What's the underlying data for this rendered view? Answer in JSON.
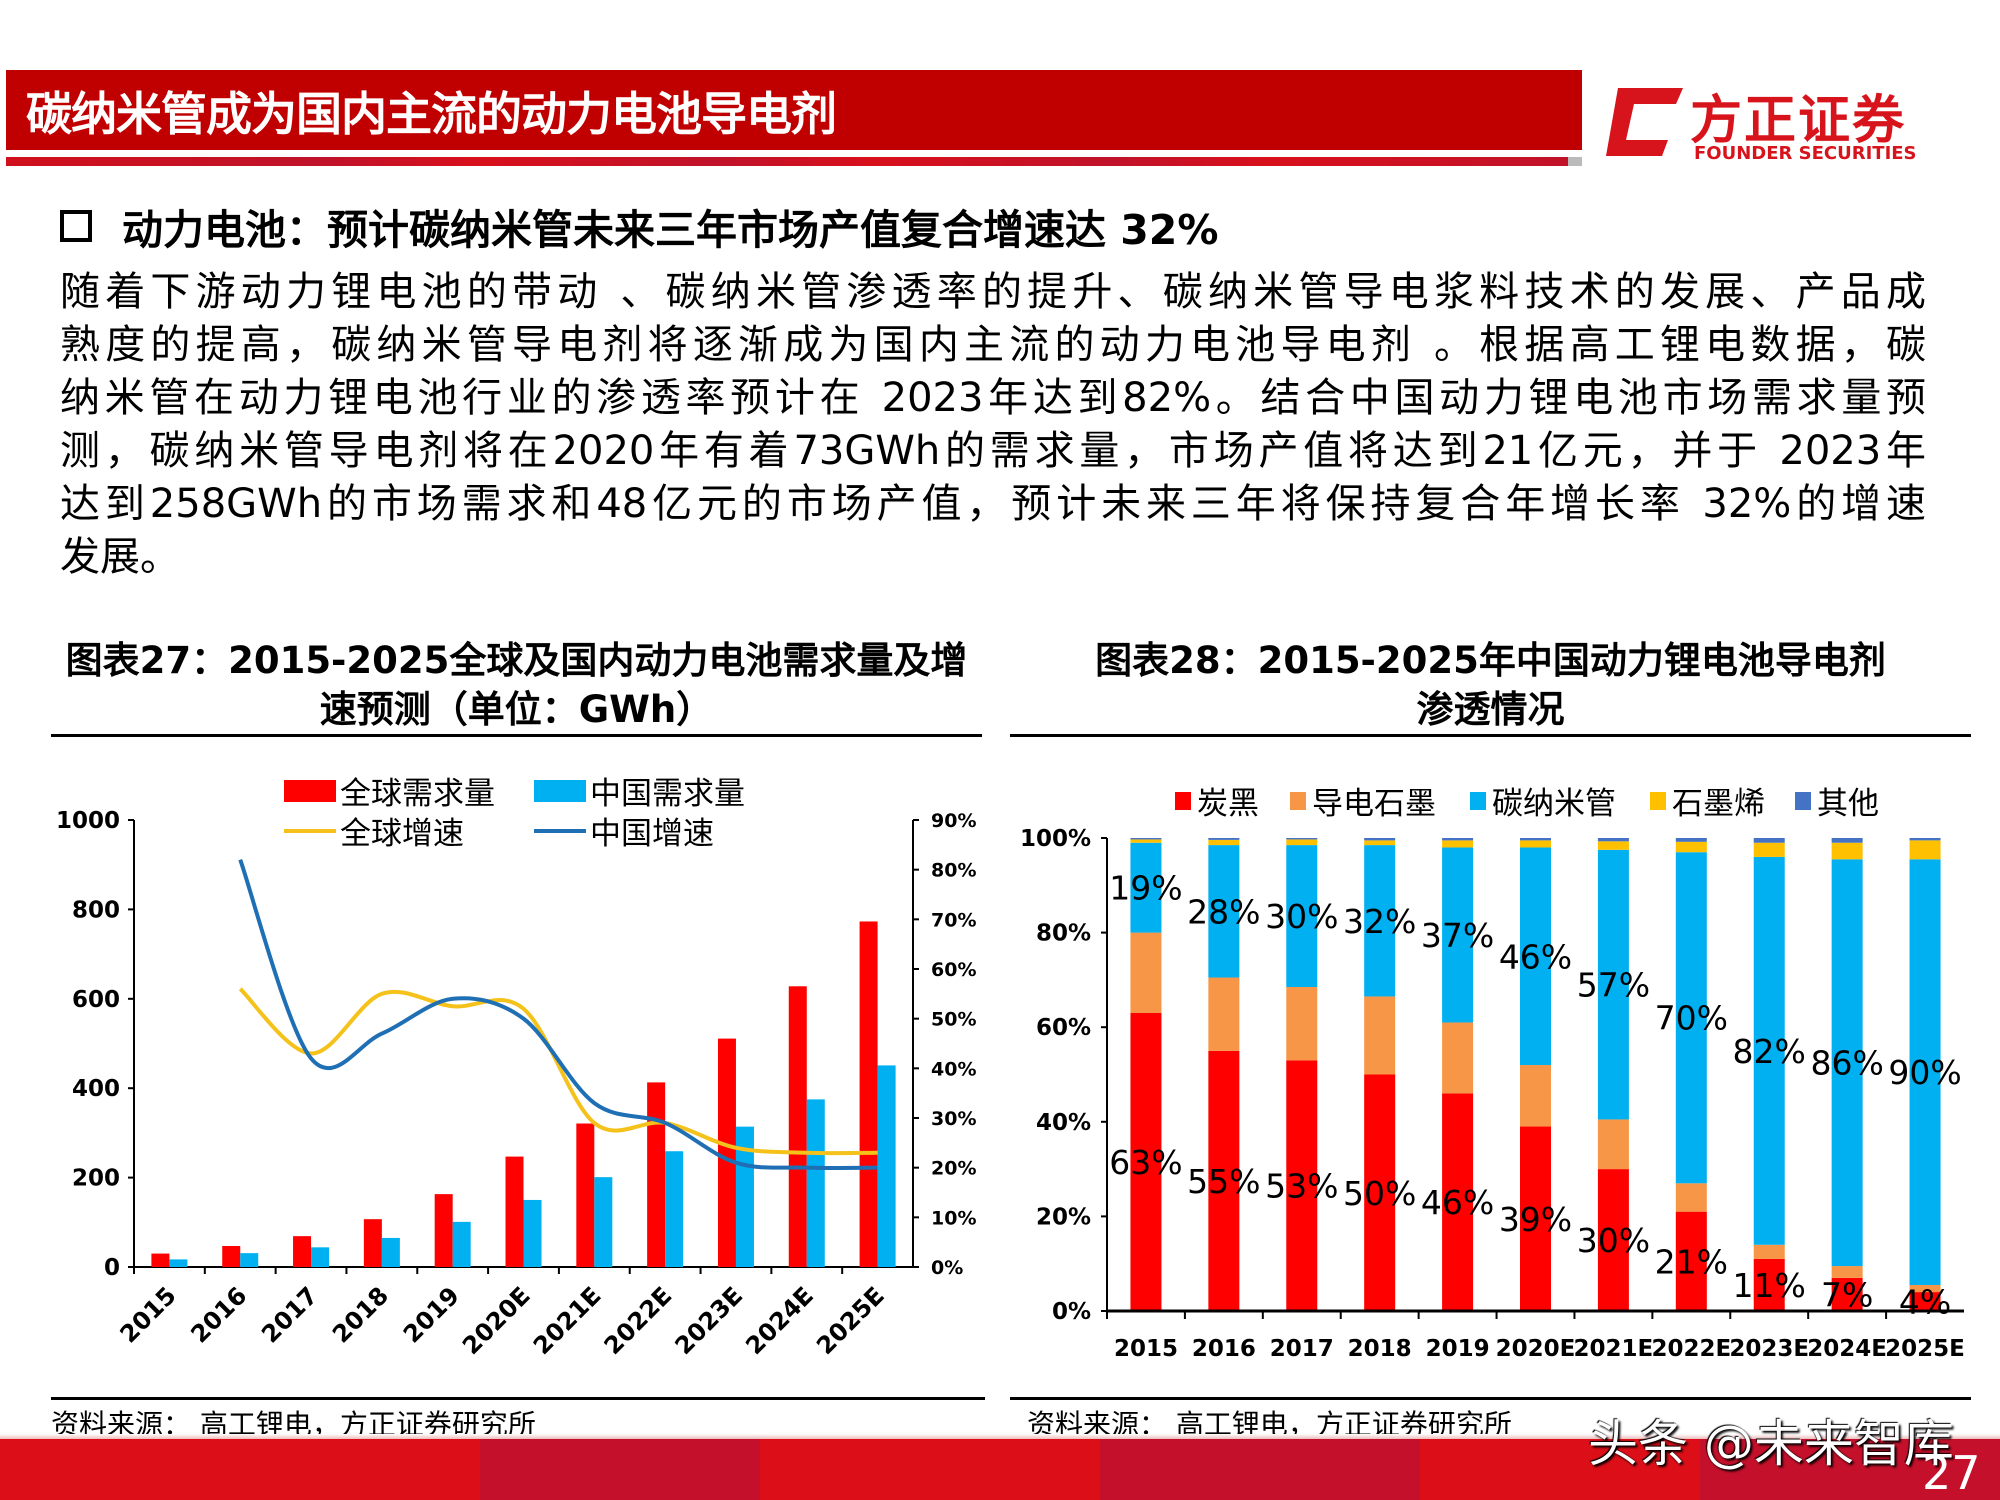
{
  "header": {
    "title": "碳纳米管成为国内主流的动力电池导电剂",
    "brand_cn": "方正证券",
    "brand_en": "FOUNDER SECURITIES",
    "brand_color": "#d7141c",
    "bar_color": "#c00000"
  },
  "section": {
    "heading": "动力电池：预计碳纳米管未来三年市场产值复合增速达 32%",
    "paragraph_lines": [
      "随着下游动力锂电池的带动 、碳纳米管渗透率的提升、碳纳米管导电浆料技术的发展、产品成",
      "熟度的提高，碳纳米管导电剂将逐渐成为国内主流的动力电池导电剂 。根据高工锂电数据，碳",
      "纳米管在动力锂电池行业的渗透率预计在 2023年达到82%。结合中国动力锂电池市场需求量预",
      "测，碳纳米管导电剂将在2020年有着73GWh的需求量，市场产值将达到21亿元，并于 2023年",
      "达到258GWh的市场需求和48亿元的市场产值，预计未来三年将保持复合年增长率 32%的增速",
      "发展。"
    ]
  },
  "chart_data": [
    {
      "type": "bar",
      "title_lines": [
        "图表27：2015-2025全球及国内动力电池需求量及增",
        "速预测（单位：GWh）"
      ],
      "source": "资料来源： 高工锂电，方正证券研究所",
      "categories": [
        "2015",
        "2016",
        "2017",
        "2018",
        "2019",
        "2020E",
        "2021E",
        "2022E",
        "2023E",
        "2024E",
        "2025E"
      ],
      "y_left": {
        "range": [
          0,
          1000
        ],
        "ticks": [
          "0",
          "200",
          "400",
          "600",
          "800",
          "1000"
        ]
      },
      "y_right": {
        "range": [
          0,
          0.9
        ],
        "ticks": [
          "0%",
          "10%",
          "20%",
          "30%",
          "40%",
          "50%",
          "60%",
          "70%",
          "80%",
          "90%"
        ]
      },
      "legend_position": "top",
      "series": [
        {
          "name": "全球需求量",
          "kind": "bar",
          "axis": "left",
          "color": "#ff0000",
          "values": [
            30,
            47,
            69,
            107,
            163,
            247,
            321,
            413,
            511,
            628,
            773
          ]
        },
        {
          "name": "中国需求量",
          "kind": "bar",
          "axis": "left",
          "color": "#00b0f0",
          "values": [
            17,
            31,
            44,
            65,
            101,
            150,
            201,
            259,
            314,
            375,
            451
          ]
        },
        {
          "name": "全球增速",
          "kind": "line",
          "axis": "right",
          "color": "#f4c21a",
          "values": [
            null,
            0.56,
            0.43,
            0.55,
            0.525,
            0.52,
            0.29,
            0.29,
            0.24,
            0.23,
            0.23
          ]
        },
        {
          "name": "中国增速",
          "kind": "line",
          "axis": "right",
          "color": "#1f6fb4",
          "values": [
            null,
            0.82,
            0.42,
            0.47,
            0.54,
            0.5,
            0.33,
            0.29,
            0.21,
            0.2,
            0.2
          ]
        }
      ]
    },
    {
      "type": "bar",
      "stacked": true,
      "title_lines": [
        "图表28：2015-2025年中国动力锂电池导电剂",
        "渗透情况"
      ],
      "source": "资料来源： 高工锂电，方正证券研究所",
      "categories": [
        "2015",
        "2016",
        "2017",
        "2018",
        "2019",
        "2020E",
        "2021E",
        "2022E",
        "2023E",
        "2024E",
        "2025E"
      ],
      "y": {
        "range": [
          0,
          100
        ],
        "ticks": [
          "0%",
          "20%",
          "40%",
          "60%",
          "80%",
          "100%"
        ]
      },
      "legend_position": "top",
      "series": [
        {
          "name": "炭黑",
          "color": "#ff0000",
          "values": [
            63,
            55,
            53,
            50,
            46,
            39,
            30,
            21,
            11,
            7,
            4
          ],
          "labels": [
            "63%",
            "55%",
            "53%",
            "50%",
            "46%",
            "39%",
            "30%",
            "21%",
            "11%",
            "7%",
            "4%"
          ]
        },
        {
          "name": "导电石墨",
          "color": "#f79646",
          "values": [
            17,
            15.5,
            15.5,
            16.5,
            15,
            13,
            10.5,
            6,
            3,
            2.5,
            1.5
          ]
        },
        {
          "name": "碳纳米管",
          "color": "#00b0f0",
          "values": [
            19,
            28,
            30,
            32,
            37,
            46,
            57,
            70,
            82,
            86,
            90
          ],
          "labels": [
            "19%",
            "28%",
            "30%",
            "32%",
            "37%",
            "46%",
            "57%",
            "70%",
            "82%",
            "86%",
            "90%"
          ]
        },
        {
          "name": "石墨烯",
          "color": "#ffc000",
          "values": [
            0.7,
            1.1,
            1.2,
            1,
            1.5,
            1.5,
            1.8,
            2.2,
            3,
            3.5,
            4
          ]
        },
        {
          "name": "其他",
          "color": "#4472c4",
          "values": [
            0.3,
            0.4,
            0.3,
            0.5,
            0.5,
            0.5,
            0.7,
            0.8,
            1,
            1,
            0.5
          ]
        }
      ]
    }
  ],
  "footer": {
    "watermark": "头条 @未来智库",
    "page_number": "27"
  }
}
